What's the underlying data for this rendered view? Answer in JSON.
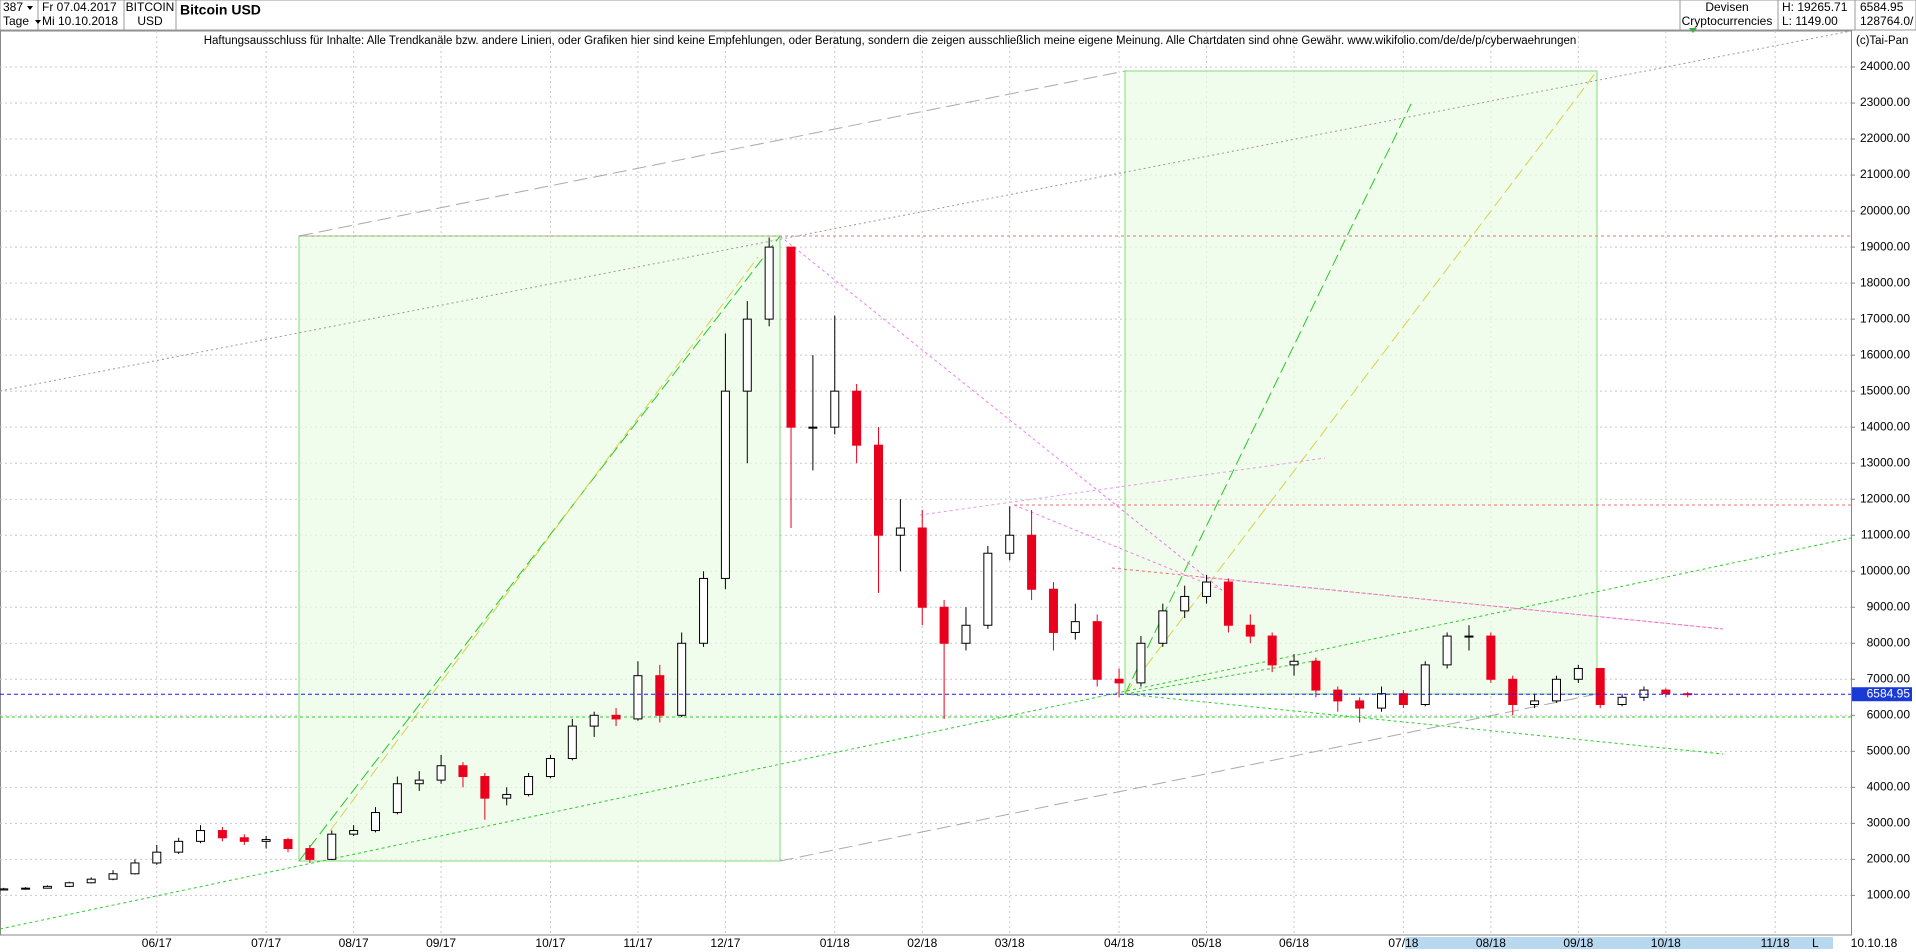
{
  "header": {
    "count": "387",
    "period": "Tage",
    "start": "Fr 07.04.2017",
    "end": "Mi 10.10.2018",
    "symbol": "BITCOIN",
    "currency": "USD",
    "group": "Devisen",
    "subgroup": "Cryptocurrencies",
    "high": "H: 19265.71",
    "low": "L: 1149.00",
    "volume": "128764.0/",
    "disclaimer": "Haftungsausschluss für Inhalte: Alle Trendkanäle bzw. andere Linien, oder Grafiken hier sind keine Empfehlungen, oder Beratung, sondern die zeigen ausschließlich meine eigene Meinung. Alle Chartdaten sind ohne Gewähr.  www.wikifolio.com/de/de/p/cyberwaehrungen",
    "copyright": "(c)Tai-Pan",
    "axis_end": "10.10.18",
    "axis_mode": "L"
  },
  "chart_data": {
    "type": "candlestick",
    "title": "Bitcoin USD",
    "last_price": 6584.95,
    "up_color": "#000000",
    "down_color": "#e8001c",
    "grid": true,
    "categories": [
      null,
      null,
      null,
      null,
      null,
      null,
      null,
      "06/17",
      null,
      null,
      null,
      null,
      "07/17",
      null,
      null,
      null,
      "08/17",
      null,
      null,
      null,
      "09/17",
      null,
      null,
      null,
      null,
      "10/17",
      null,
      null,
      null,
      "11/17",
      null,
      null,
      null,
      "12/17",
      null,
      null,
      null,
      null,
      "01/18",
      null,
      null,
      null,
      "02/18",
      null,
      null,
      null,
      "03/18",
      null,
      null,
      null,
      null,
      "04/18",
      null,
      null,
      null,
      "05/18",
      null,
      null,
      null,
      "06/18",
      null,
      null,
      null,
      null,
      "07/18",
      null,
      null,
      null,
      "08/18",
      null,
      null,
      null,
      "09/18",
      null,
      null,
      null,
      "10/18",
      null,
      null,
      null,
      null,
      "11/18",
      null,
      null,
      null
    ],
    "open": [
      1150,
      1180,
      1200,
      1250,
      1350,
      1450,
      1600,
      1900,
      2200,
      2500,
      2800,
      2600,
      2500,
      2550,
      2300,
      2000,
      2700,
      2800,
      3300,
      4100,
      4200,
      4600,
      4300,
      3700,
      3800,
      4300,
      4800,
      5700,
      6000,
      5900,
      7100,
      6000,
      8000,
      9800,
      15000,
      17000,
      19000,
      14000,
      14000,
      15000,
      13500,
      11000,
      11200,
      9000,
      8000,
      8500,
      10500,
      11000,
      9500,
      8300,
      8600,
      7000,
      6900,
      8000,
      8900,
      9300,
      9700,
      8500,
      8200,
      7400,
      7500,
      6700,
      6400,
      6200,
      6600,
      6300,
      7400,
      8200,
      8200,
      7000,
      6300,
      6400,
      7000,
      7300,
      6300,
      6500,
      6700,
      6600,
      null,
      null,
      null,
      null,
      null,
      null,
      null
    ],
    "high": [
      1210,
      1230,
      1280,
      1380,
      1500,
      1700,
      2000,
      2400,
      2600,
      2950,
      2900,
      2700,
      2650,
      2600,
      2400,
      2800,
      2950,
      3450,
      4300,
      4450,
      4900,
      4700,
      4400,
      4000,
      4400,
      4900,
      5900,
      6100,
      6200,
      7500,
      7400,
      8300,
      10000,
      16600,
      17500,
      19266,
      19000,
      16000,
      17100,
      15200,
      14000,
      12000,
      11700,
      9200,
      9000,
      10700,
      11800,
      11700,
      9700,
      9100,
      8800,
      7300,
      8200,
      9100,
      9600,
      9900,
      9800,
      8800,
      8300,
      7700,
      7600,
      6800,
      6500,
      6800,
      6700,
      7500,
      8300,
      8500,
      8300,
      7100,
      6600,
      7100,
      7400,
      7300,
      6600,
      6800,
      6750,
      6650,
      null,
      null,
      null,
      null,
      null,
      null,
      null
    ],
    "low": [
      1149,
      1160,
      1190,
      1230,
      1330,
      1420,
      1580,
      1850,
      2150,
      2450,
      2500,
      2400,
      2300,
      2200,
      1900,
      1980,
      2650,
      2750,
      3250,
      3900,
      4100,
      4000,
      3100,
      3500,
      3750,
      4250,
      4750,
      5400,
      5700,
      5850,
      5800,
      5950,
      7900,
      9500,
      13000,
      16800,
      11200,
      12800,
      13800,
      13000,
      9400,
      10000,
      8500,
      5900,
      7800,
      8400,
      10300,
      9200,
      7800,
      8100,
      6800,
      6500,
      6800,
      7900,
      8700,
      9100,
      8300,
      8000,
      7200,
      7100,
      6500,
      6100,
      5800,
      6100,
      6200,
      6250,
      7300,
      7800,
      6900,
      6000,
      6200,
      6350,
      6900,
      6200,
      6250,
      6400,
      6500,
      6500,
      null,
      null,
      null,
      null,
      null,
      null,
      null
    ],
    "close": [
      1180,
      1200,
      1250,
      1350,
      1450,
      1600,
      1900,
      2200,
      2500,
      2800,
      2600,
      2500,
      2550,
      2300,
      2000,
      2700,
      2800,
      3300,
      4100,
      4200,
      4600,
      4300,
      3700,
      3800,
      4300,
      4800,
      5700,
      6000,
      5900,
      7100,
      6000,
      8000,
      9800,
      15000,
      17000,
      19000,
      14000,
      14000,
      15000,
      13500,
      11000,
      11200,
      9000,
      8000,
      8500,
      10500,
      11000,
      9500,
      8300,
      8600,
      7000,
      6900,
      8000,
      8900,
      9300,
      9700,
      8500,
      8200,
      7400,
      7500,
      6700,
      6400,
      6200,
      6600,
      6300,
      7400,
      8200,
      8200,
      7000,
      6300,
      6400,
      7000,
      7300,
      6300,
      6500,
      6700,
      6600,
      6584.95,
      null,
      null,
      null,
      null,
      null,
      null,
      null
    ],
    "ylim": [
      -100,
      25000
    ],
    "yticks": [
      {
        "value": 1000,
        "label": "1000.00"
      },
      {
        "value": 2000,
        "label": "2000.00"
      },
      {
        "value": 3000,
        "label": "3000.00"
      },
      {
        "value": 4000,
        "label": "4000.00"
      },
      {
        "value": 5000,
        "label": "5000.00"
      },
      {
        "value": 6000,
        "label": "6000.00"
      },
      {
        "value": 7000,
        "label": "7000.00"
      },
      {
        "value": 8000,
        "label": "8000.00"
      },
      {
        "value": 9000,
        "label": "9000.00"
      },
      {
        "value": 10000,
        "label": "10000.00"
      },
      {
        "value": 11000,
        "label": "11000.00"
      },
      {
        "value": 12000,
        "label": "12000.00"
      },
      {
        "value": 13000,
        "label": "13000.00"
      },
      {
        "value": 14000,
        "label": "14000.00"
      },
      {
        "value": 15000,
        "label": "15000.00"
      },
      {
        "value": 16000,
        "label": "16000.00"
      },
      {
        "value": 17000,
        "label": "17000.00"
      },
      {
        "value": 18000,
        "label": "18000.00"
      },
      {
        "value": 19000,
        "label": "19000.00"
      },
      {
        "value": 20000,
        "label": "20000.00"
      },
      {
        "value": 21000,
        "label": "21000.00"
      },
      {
        "value": 22000,
        "label": "22000.00"
      },
      {
        "value": 23000,
        "label": "23000.00"
      },
      {
        "value": 24000,
        "label": "24000.00"
      }
    ]
  }
}
